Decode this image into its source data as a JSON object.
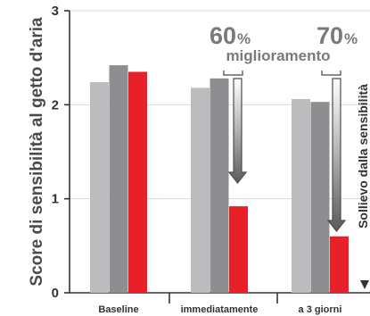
{
  "chart_data": {
    "type": "bar",
    "ylabel": "Score di sensibilità al getto d'aria",
    "ylim": [
      0,
      3
    ],
    "yticks": [
      "0",
      "1",
      "2",
      "3"
    ],
    "categories": [
      "Baseline",
      "immediatamente",
      "a 3 giorni"
    ],
    "series": [
      {
        "values": [
          2.24,
          2.18,
          2.06
        ],
        "color": "#bcbcbe"
      },
      {
        "values": [
          2.42,
          2.28,
          2.03
        ],
        "color": "#8e8e91"
      },
      {
        "values": [
          2.35,
          0.92,
          0.6
        ],
        "color": "#e8202a"
      }
    ],
    "annotations": {
      "improvements": [
        {
          "value": "60",
          "unit": "%"
        },
        {
          "value": "70",
          "unit": "%"
        }
      ],
      "improvement_label": "miglioramento",
      "relief_label": "Sollievo dalla sensibilità"
    }
  }
}
